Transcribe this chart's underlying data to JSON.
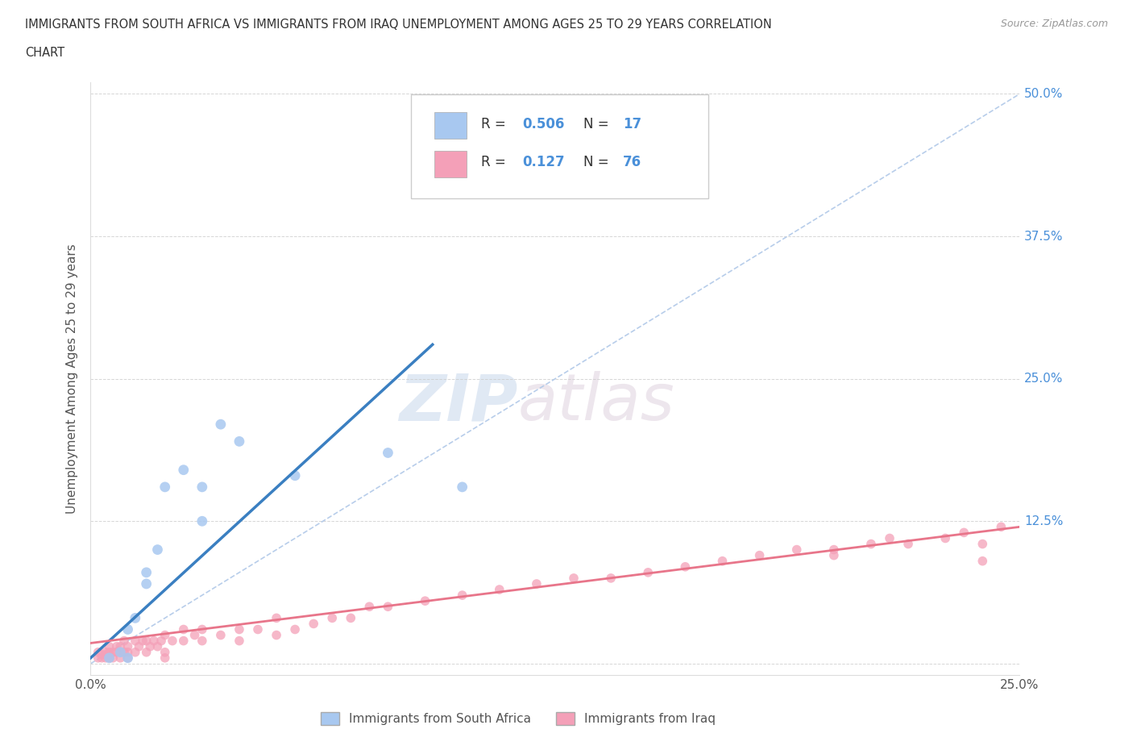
{
  "title_line1": "IMMIGRANTS FROM SOUTH AFRICA VS IMMIGRANTS FROM IRAQ UNEMPLOYMENT AMONG AGES 25 TO 29 YEARS CORRELATION",
  "title_line2": "CHART",
  "source": "Source: ZipAtlas.com",
  "ylabel": "Unemployment Among Ages 25 to 29 years",
  "south_africa_R": 0.506,
  "south_africa_N": 17,
  "iraq_R": 0.127,
  "iraq_N": 76,
  "south_africa_color": "#a8c8f0",
  "iraq_color": "#f4a0b8",
  "south_africa_line_color": "#3a7fc1",
  "iraq_line_color": "#e8758a",
  "ref_line_color": "#b0c8e8",
  "background_color": "#ffffff",
  "watermark_zip": "ZIP",
  "watermark_atlas": "atlas",
  "xlim": [
    0.0,
    0.25
  ],
  "ylim": [
    -0.01,
    0.51
  ],
  "south_africa_x": [
    0.005,
    0.008,
    0.01,
    0.01,
    0.012,
    0.015,
    0.015,
    0.018,
    0.02,
    0.025,
    0.03,
    0.03,
    0.035,
    0.04,
    0.055,
    0.08,
    0.1
  ],
  "south_africa_y": [
    0.005,
    0.01,
    0.005,
    0.03,
    0.04,
    0.07,
    0.08,
    0.1,
    0.155,
    0.17,
    0.125,
    0.155,
    0.21,
    0.195,
    0.165,
    0.185,
    0.155
  ],
  "iraq_x": [
    0.002,
    0.002,
    0.003,
    0.003,
    0.004,
    0.004,
    0.004,
    0.005,
    0.005,
    0.005,
    0.005,
    0.005,
    0.006,
    0.006,
    0.007,
    0.007,
    0.008,
    0.008,
    0.008,
    0.009,
    0.009,
    0.01,
    0.01,
    0.01,
    0.012,
    0.012,
    0.013,
    0.014,
    0.015,
    0.015,
    0.016,
    0.017,
    0.018,
    0.019,
    0.02,
    0.02,
    0.02,
    0.022,
    0.025,
    0.025,
    0.028,
    0.03,
    0.03,
    0.035,
    0.04,
    0.04,
    0.045,
    0.05,
    0.05,
    0.055,
    0.06,
    0.065,
    0.07,
    0.075,
    0.08,
    0.09,
    0.1,
    0.11,
    0.12,
    0.13,
    0.14,
    0.15,
    0.16,
    0.17,
    0.18,
    0.19,
    0.2,
    0.2,
    0.21,
    0.215,
    0.22,
    0.23,
    0.235,
    0.24,
    0.24,
    0.245
  ],
  "iraq_y": [
    0.01,
    0.005,
    0.008,
    0.005,
    0.01,
    0.005,
    0.008,
    0.005,
    0.005,
    0.008,
    0.01,
    0.015,
    0.005,
    0.01,
    0.01,
    0.015,
    0.005,
    0.01,
    0.015,
    0.01,
    0.02,
    0.005,
    0.01,
    0.015,
    0.01,
    0.02,
    0.015,
    0.02,
    0.01,
    0.02,
    0.015,
    0.02,
    0.015,
    0.02,
    0.005,
    0.01,
    0.025,
    0.02,
    0.02,
    0.03,
    0.025,
    0.03,
    0.02,
    0.025,
    0.02,
    0.03,
    0.03,
    0.04,
    0.025,
    0.03,
    0.035,
    0.04,
    0.04,
    0.05,
    0.05,
    0.055,
    0.06,
    0.065,
    0.07,
    0.075,
    0.075,
    0.08,
    0.085,
    0.09,
    0.095,
    0.1,
    0.1,
    0.095,
    0.105,
    0.11,
    0.105,
    0.11,
    0.115,
    0.09,
    0.105,
    0.12
  ],
  "legend_sa_label": "R = 0.506   N = 17",
  "legend_iq_label": "R =  0.127   N = 76"
}
